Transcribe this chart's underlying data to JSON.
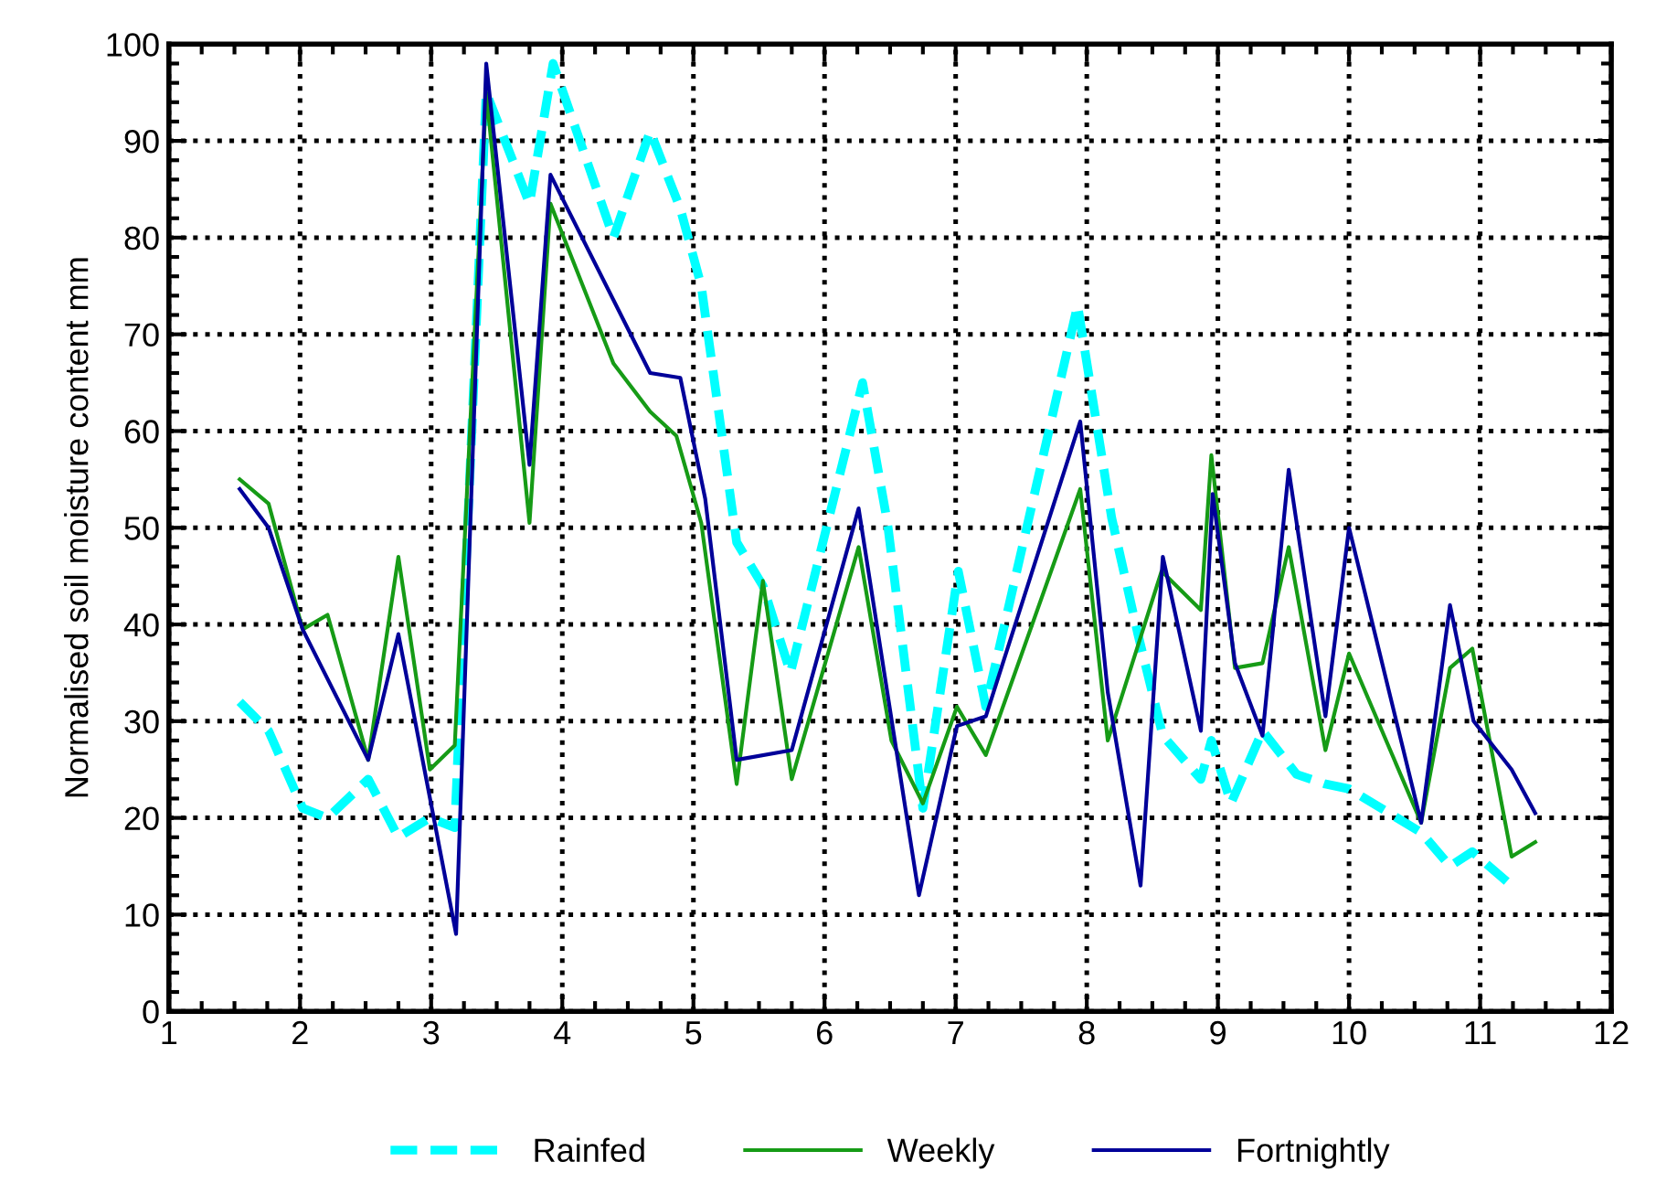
{
  "chart_data": {
    "type": "line",
    "ylabel": "Normalised soil moisture content mm",
    "xlim": [
      1,
      12
    ],
    "xticks": [
      1,
      2,
      3,
      4,
      5,
      6,
      7,
      8,
      9,
      10,
      11,
      12
    ],
    "ylim": [
      0,
      100
    ],
    "yticks": [
      0,
      10,
      20,
      30,
      40,
      50,
      60,
      70,
      80,
      90,
      100
    ],
    "grid": true,
    "legend": "bottom",
    "marker": "none",
    "series": [
      {
        "name": "Rainfed",
        "color": "#00ffff",
        "line_style": "dashed",
        "x": [
          1.54,
          1.76,
          2.02,
          2.21,
          2.52,
          2.75,
          2.99,
          3.18,
          3.42,
          3.75,
          3.93,
          4.39,
          4.67,
          4.9,
          5.06,
          5.33,
          5.53,
          5.74,
          6.29,
          6.48,
          6.75,
          7.02,
          7.23,
          7.93,
          8.19,
          8.39,
          8.58,
          8.87,
          8.95,
          9.1,
          9.34,
          9.6,
          9.82,
          10.0,
          10.55,
          10.77,
          10.94,
          11.24
        ],
        "values": [
          32,
          29,
          21,
          20,
          24,
          18,
          20,
          19,
          95,
          83.5,
          98,
          80,
          91,
          83,
          75,
          48.5,
          44,
          35,
          65,
          50.5,
          21,
          45.5,
          31.5,
          73,
          51,
          39,
          28.5,
          24,
          28,
          21.5,
          29,
          24.5,
          23.5,
          23,
          18.5,
          15,
          16.5,
          13
        ]
      },
      {
        "name": "Weekly",
        "color": "#169b16",
        "line_style": "solid",
        "x": [
          1.54,
          1.76,
          2.02,
          2.21,
          2.52,
          2.75,
          2.99,
          3.18,
          3.42,
          3.75,
          3.91,
          4.39,
          4.67,
          4.87,
          5.06,
          5.33,
          5.53,
          5.75,
          6.26,
          6.51,
          6.75,
          7.01,
          7.23,
          7.95,
          8.16,
          8.57,
          8.87,
          8.95,
          9.13,
          9.34,
          9.54,
          9.82,
          10.0,
          10.55,
          10.77,
          10.94,
          11.24,
          11.42
        ],
        "values": [
          55,
          52.5,
          39.5,
          41,
          26,
          47,
          25,
          27.5,
          95,
          50.5,
          83.5,
          67,
          62,
          59.5,
          50.5,
          23.5,
          44.5,
          24,
          48,
          28,
          21.5,
          31.5,
          26.5,
          54,
          28,
          45.5,
          41.5,
          57.5,
          35.5,
          36,
          48,
          27,
          37,
          19.5,
          35.5,
          37.5,
          16,
          17.5
        ]
      },
      {
        "name": "Fortnightly",
        "color": "#000099",
        "line_style": "solid",
        "x": [
          1.54,
          1.76,
          2.02,
          2.52,
          2.75,
          3.19,
          3.42,
          3.75,
          3.91,
          4.67,
          4.9,
          5.09,
          5.33,
          5.75,
          6.26,
          6.72,
          7.01,
          7.23,
          7.95,
          8.16,
          8.41,
          8.58,
          8.87,
          8.96,
          9.13,
          9.34,
          9.54,
          9.82,
          10.0,
          10.55,
          10.77,
          10.95,
          11.24,
          11.42
        ],
        "values": [
          54,
          50,
          39.5,
          26,
          39,
          8,
          98,
          56.5,
          86.5,
          66,
          65.5,
          53,
          26,
          27,
          52,
          12,
          29.5,
          30.5,
          61,
          33,
          13,
          47,
          29,
          53.5,
          36,
          28.5,
          56,
          30.5,
          50,
          19.5,
          42,
          30,
          25,
          20.5
        ]
      }
    ]
  }
}
